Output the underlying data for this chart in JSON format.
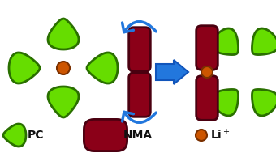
{
  "bg_color": "#ffffff",
  "green_color": "#66dd00",
  "green_outline": "#2a7000",
  "nma_fill": "#8b0018",
  "nma_outline": "#4a0010",
  "liplus_fill": "#cc5500",
  "liplus_outline": "#7a3000",
  "arrow_color": "#2277dd",
  "text_color": "#111111",
  "figw": 3.4,
  "figh": 1.89,
  "dpi": 100
}
